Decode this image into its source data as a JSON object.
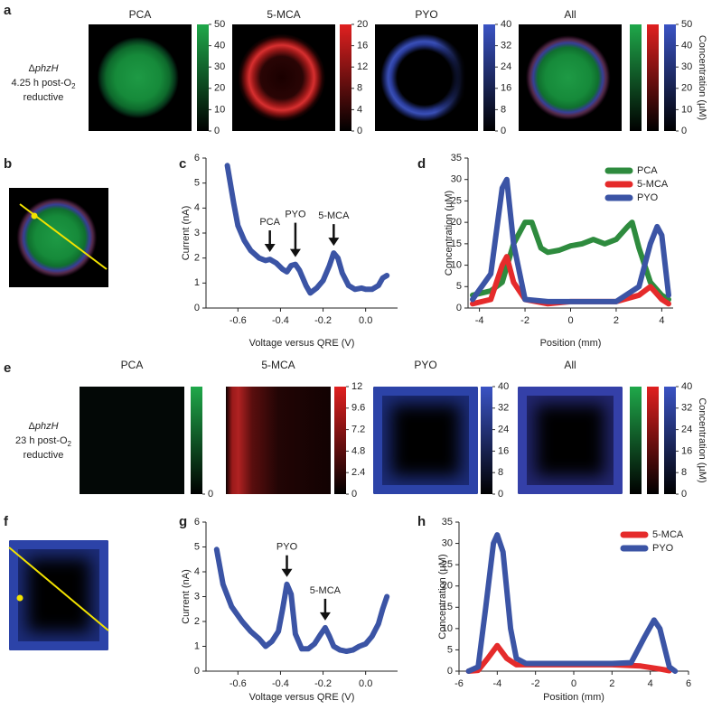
{
  "panel_letters": [
    "a",
    "b",
    "c",
    "d",
    "e",
    "f",
    "g",
    "h"
  ],
  "rows": [
    {
      "strain_prefix": "Δ",
      "strain": "phzH",
      "condition": "4.25 h post-O",
      "condition_sub": "2",
      "condition_end": "reductive",
      "colorbar_label": "Concentration (µM)",
      "panels": [
        {
          "title": "PCA",
          "colorbar": {
            "colors": [
              "#1fa84a"
            ],
            "lim": [
              0,
              50
            ],
            "ticks": [
              0,
              10,
              20,
              30,
              40,
              50
            ]
          }
        },
        {
          "title": "5-MCA",
          "colorbar": {
            "colors": [
              "#e02020"
            ],
            "lim": [
              0,
              20
            ],
            "ticks": [
              0,
              4,
              8,
              12,
              16,
              20
            ]
          }
        },
        {
          "title": "PYO",
          "colorbar": {
            "colors": [
              "#3a53c4"
            ],
            "lim": [
              0,
              40
            ],
            "ticks": [
              0,
              8,
              16,
              24,
              32,
              40
            ]
          }
        },
        {
          "title": "All",
          "colorbar": {
            "colors": [
              "#1fa84a",
              "#e02020",
              "#3a53c4"
            ],
            "lim": [
              0,
              50
            ],
            "ticks": [
              0,
              10,
              20,
              30,
              40,
              50
            ]
          }
        }
      ]
    },
    {
      "strain_prefix": "Δ",
      "strain": "phzH",
      "condition": "23 h post-O",
      "condition_sub": "2",
      "condition_end": "reductive",
      "colorbar_label": "Concentration (µM)",
      "panels": [
        {
          "title": "PCA",
          "colorbar": {
            "colors": [
              "#1fa84a"
            ],
            "ticks": [
              0
            ]
          }
        },
        {
          "title": "5-MCA",
          "colorbar": {
            "colors": [
              "#e02020"
            ],
            "lim": [
              0,
              12
            ],
            "ticks": [
              0,
              2.4,
              4.8,
              7.2,
              9.6,
              12
            ]
          }
        },
        {
          "title": "PYO",
          "colorbar": {
            "colors": [
              "#3a53c4"
            ],
            "lim": [
              0,
              40
            ],
            "ticks": [
              0,
              8,
              16,
              24,
              32,
              40
            ]
          }
        },
        {
          "title": "All",
          "colorbar": {
            "colors": [
              "#1fa84a",
              "#e02020",
              "#3a53c4"
            ],
            "lim": [
              0,
              40
            ],
            "ticks": [
              0,
              8,
              16,
              24,
              32,
              40
            ]
          }
        }
      ]
    }
  ],
  "chart_data": [
    {
      "type": "line",
      "color": "#3b54a5",
      "xlabel": "Voltage versus QRE (V)",
      "ylabel": "Current (nA)",
      "xlim": [
        -0.75,
        0.15
      ],
      "xticks": [
        -0.6,
        -0.4,
        -0.2,
        {
          "value": 0,
          "label": "0.0"
        }
      ],
      "ylim": [
        0,
        6
      ],
      "yticks": [
        0,
        1,
        2,
        3,
        4,
        5,
        6
      ],
      "x": [
        -0.65,
        -0.62,
        -0.6,
        -0.57,
        -0.54,
        -0.5,
        -0.47,
        -0.45,
        -0.42,
        -0.39,
        -0.37,
        -0.35,
        -0.33,
        -0.31,
        -0.28,
        -0.26,
        -0.23,
        -0.2,
        -0.17,
        -0.15,
        -0.13,
        -0.11,
        -0.08,
        -0.05,
        -0.02,
        0.0,
        0.03,
        0.06,
        0.08,
        0.1
      ],
      "values": [
        5.7,
        4.2,
        3.3,
        2.7,
        2.3,
        2.0,
        1.9,
        1.95,
        1.8,
        1.55,
        1.45,
        1.7,
        1.75,
        1.5,
        0.9,
        0.6,
        0.8,
        1.1,
        1.7,
        2.2,
        2.0,
        1.4,
        0.9,
        0.75,
        0.8,
        0.75,
        0.75,
        0.9,
        1.2,
        1.3
      ],
      "annotations": [
        {
          "text": "PCA",
          "x": -0.45
        },
        {
          "text": "PYO",
          "x": -0.33
        },
        {
          "text": "5-MCA",
          "x": -0.15
        }
      ]
    },
    {
      "type": "multiline",
      "xlabel": "Position (mm)",
      "ylabel": "Concentration (µM)",
      "xlim": [
        -4.5,
        4.5
      ],
      "xticks": [
        -4,
        -2,
        0,
        2,
        4
      ],
      "ylim": [
        0,
        35
      ],
      "yticks": [
        0,
        5,
        10,
        15,
        20,
        25,
        30,
        35
      ],
      "legend": "upper right",
      "series": [
        {
          "name": "PCA",
          "color": "#2e8b3e",
          "x": [
            -4.3,
            -3.5,
            -3,
            -2.5,
            -2,
            -1.7,
            -1.3,
            -1,
            -0.5,
            0,
            0.5,
            1,
            1.5,
            2,
            2.5,
            2.7,
            3,
            3.5,
            4,
            4.3
          ],
          "values": [
            3,
            4,
            6,
            15,
            20,
            20,
            14,
            13,
            13.5,
            14.5,
            15,
            16,
            15,
            16,
            19,
            20,
            14,
            6,
            3,
            2
          ]
        },
        {
          "name": "5-MCA",
          "color": "#e52b2b",
          "x": [
            -4.3,
            -3.5,
            -3,
            -2.8,
            -2.5,
            -2,
            -1,
            0,
            1,
            2,
            3,
            3.5,
            4,
            4.3
          ],
          "values": [
            1,
            2,
            10,
            12,
            6,
            2,
            1,
            1.5,
            1.5,
            1.5,
            3,
            5,
            2,
            1
          ]
        },
        {
          "name": "PYO",
          "color": "#3b54a5",
          "x": [
            -4.3,
            -3.5,
            -3,
            -2.8,
            -2.5,
            -2,
            -1,
            0,
            1,
            2,
            3,
            3.5,
            3.8,
            4,
            4.3
          ],
          "values": [
            2,
            8,
            28,
            30,
            15,
            2,
            1.5,
            1.5,
            1.5,
            1.5,
            5,
            15,
            19,
            17,
            3
          ]
        }
      ]
    },
    {
      "type": "line",
      "color": "#3b54a5",
      "xlabel": "Voltage versus QRE (V)",
      "ylabel": "Current (nA)",
      "xlim": [
        -0.75,
        0.15
      ],
      "xticks": [
        -0.6,
        -0.4,
        -0.2,
        {
          "value": 0,
          "label": "0.0"
        }
      ],
      "ylim": [
        0,
        6
      ],
      "yticks": [
        0,
        1,
        2,
        3,
        4,
        5,
        6
      ],
      "x": [
        -0.7,
        -0.67,
        -0.63,
        -0.58,
        -0.54,
        -0.5,
        -0.47,
        -0.44,
        -0.41,
        -0.39,
        -0.37,
        -0.35,
        -0.33,
        -0.3,
        -0.27,
        -0.24,
        -0.21,
        -0.19,
        -0.17,
        -0.15,
        -0.12,
        -0.09,
        -0.06,
        -0.03,
        0,
        0.03,
        0.06,
        0.08,
        0.1
      ],
      "values": [
        4.9,
        3.5,
        2.6,
        2.0,
        1.6,
        1.3,
        1.0,
        1.2,
        1.6,
        2.5,
        3.5,
        3.1,
        1.5,
        0.9,
        0.9,
        1.1,
        1.5,
        1.75,
        1.4,
        1.0,
        0.85,
        0.8,
        0.85,
        1.0,
        1.1,
        1.4,
        1.9,
        2.5,
        3.0
      ],
      "annotations": [
        {
          "text": "PYO",
          "x": -0.37
        },
        {
          "text": "5-MCA",
          "x": -0.19
        }
      ]
    },
    {
      "type": "multiline",
      "xlabel": "Position (mm)",
      "ylabel": "Concentration (µM)",
      "xlim": [
        -6,
        6
      ],
      "xticks": [
        -6,
        -4,
        -2,
        0,
        2,
        4,
        6
      ],
      "ylim": [
        0,
        35
      ],
      "yticks": [
        0,
        5,
        10,
        15,
        20,
        25,
        30,
        35
      ],
      "legend": "upper right",
      "series": [
        {
          "name": "5-MCA",
          "color": "#e52b2b",
          "x": [
            -5.5,
            -5,
            -4.5,
            -4,
            -3.5,
            -3,
            -2,
            0,
            2,
            3.5,
            4.5,
            5
          ],
          "values": [
            0,
            0.2,
            3,
            6,
            3,
            1.5,
            1.5,
            1.5,
            1.5,
            1.2,
            0.5,
            0.1
          ]
        },
        {
          "name": "PYO",
          "color": "#3b54a5",
          "x": [
            -5.5,
            -5,
            -4.6,
            -4.2,
            -4,
            -3.7,
            -3.3,
            -3,
            -2.5,
            0,
            2,
            3,
            3.7,
            4.2,
            4.5,
            5,
            5.3
          ],
          "values": [
            0,
            1,
            15,
            30,
            32,
            28,
            10,
            3,
            1.8,
            1.8,
            1.8,
            2,
            8,
            12,
            10,
            1,
            0
          ]
        }
      ]
    }
  ]
}
